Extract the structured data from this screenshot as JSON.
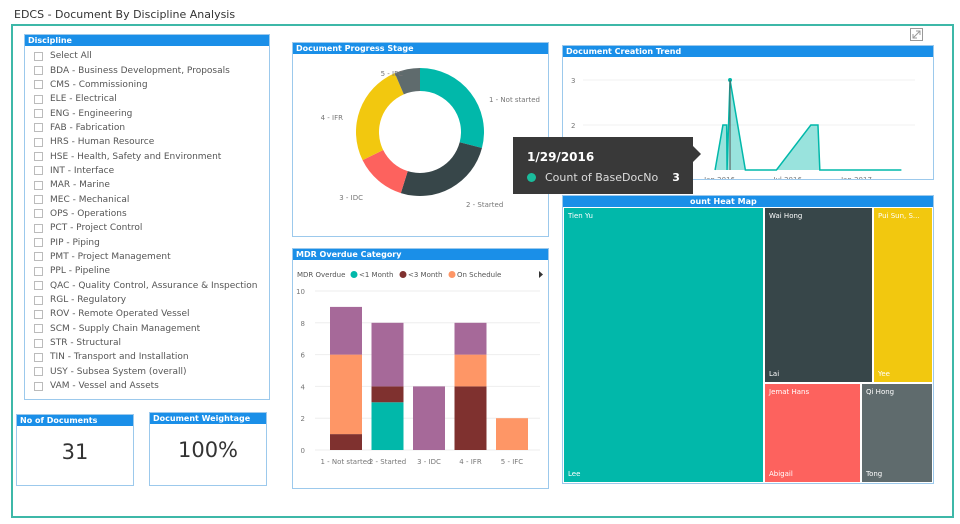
{
  "app": {
    "title": "EDCS - Document By Discipline Analysis",
    "expand_icon": "expand-icon"
  },
  "slicer": {
    "title": "Discipline",
    "items": [
      "Select All",
      "BDA - Business Development, Proposals",
      "CMS - Commissioning",
      "ELE - Electrical",
      "ENG - Engineering",
      "FAB - Fabrication",
      "HRS - Human Resource",
      "HSE - Health, Safety and Environment",
      "INT - Interface",
      "MAR - Marine",
      "MEC - Mechanical",
      "OPS - Operations",
      "PCT - Project Control",
      "PIP - Piping",
      "PMT - Project Management",
      "PPL - Pipeline",
      "QAC - Quality Control, Assurance & Inspection",
      "RGL - Regulatory",
      "ROV - Remote Operated Vessel",
      "SCM - Supply Chain Management",
      "STR - Structural",
      "TIN - Transport and Installation",
      "USY - Subsea System (overall)",
      "VAM - Vessel and Assets"
    ]
  },
  "cards": {
    "docs": {
      "title": "No of Documents",
      "value": "31"
    },
    "weight": {
      "title": "Document Weightage",
      "value": "100%"
    }
  },
  "chart_data": [
    {
      "type": "pie",
      "title": "Document Progress Stage",
      "donut": true,
      "categories": [
        "1 - Not started",
        "2 - Started",
        "3 - IDC",
        "4 - IFR",
        "5 - IFC"
      ],
      "values": [
        9,
        8,
        4,
        8,
        2
      ],
      "colors": [
        "#01b8aa",
        "#374649",
        "#fd625e",
        "#f2c80f",
        "#5f6b6d"
      ]
    },
    {
      "type": "bar",
      "stacked": true,
      "title": "MDR Overdue Category",
      "legend_title": "MDR Overdue",
      "categories": [
        "1 - Not started",
        "2 - Started",
        "3 - IDC",
        "4 - IFR",
        "5 - IFC"
      ],
      "series": [
        {
          "name": "<1 Month",
          "color": "#01b8aa",
          "values": [
            0,
            3,
            0,
            0,
            0
          ]
        },
        {
          "name": "<3 Month",
          "color": "#7f312f",
          "values": [
            1,
            1,
            0,
            4,
            0
          ]
        },
        {
          "name": "On Schedule",
          "color": "#fe9666",
          "values": [
            5,
            0,
            0,
            2,
            2
          ]
        },
        {
          "name": "",
          "color": "#a66999",
          "values": [
            3,
            4,
            4,
            2,
            0
          ]
        }
      ],
      "ylim": [
        0,
        10
      ],
      "yticks": [
        0,
        2,
        4,
        6,
        8,
        10
      ],
      "legend": "top"
    },
    {
      "type": "area",
      "title": "Document Creation Trend",
      "x": [
        "2015-12-20",
        "2016-01-10",
        "2016-01-20",
        "2016-01-21",
        "2016-01-29",
        "2016-03-10",
        "2016-06-01",
        "2016-09-01",
        "2016-09-20",
        "2016-09-25",
        "2017-05-01"
      ],
      "y": [
        1,
        2,
        2,
        1,
        3,
        1,
        1,
        2,
        2,
        1,
        1
      ],
      "yticks": [
        2,
        3
      ],
      "xticks": [
        "Jan 2016",
        "Jul 2016",
        "Jan 2017"
      ],
      "color": "#01b8aa"
    }
  ],
  "tooltip": {
    "date": "1/29/2016",
    "label": "Count of BaseDocNo",
    "value": "3"
  },
  "heatmap": {
    "title": "ount Heat Map",
    "cells": [
      {
        "top": "Tien Yu",
        "bottom": "Lee",
        "color": "#01b8aa"
      },
      {
        "top": "Wai Hong",
        "bottom": "Lai",
        "color": "#374649"
      },
      {
        "top": "Pui Sun, S...",
        "bottom": "Yee",
        "color": "#f2c80f"
      },
      {
        "top": "Jemat Hans",
        "bottom": "Abigail",
        "color": "#fd625e"
      },
      {
        "top": "Qi Hong",
        "bottom": "Tong",
        "color": "#5f6b6d"
      }
    ]
  }
}
